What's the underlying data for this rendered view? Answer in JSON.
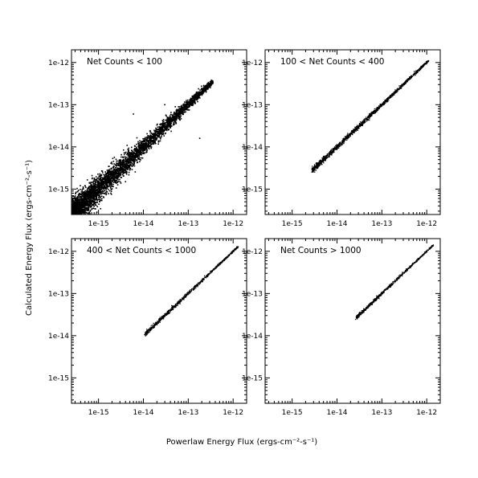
{
  "figure": {
    "xlabel": "Powerlaw Energy Flux (ergs-cm⁻²-s⁻¹)",
    "ylabel": "Calculated Energy Flux (ergs-cm⁻²-s⁻¹)"
  },
  "chart_data": [
    {
      "type": "scatter",
      "title": "Net Counts < 100",
      "xlabel": "",
      "ylabel": "",
      "xscale": "log",
      "yscale": "log",
      "xlim": [
        2.5e-16,
        2e-12
      ],
      "ylim": [
        2.5e-16,
        2e-12
      ],
      "xticks": [
        1e-15,
        1e-14,
        1e-13,
        1e-12
      ],
      "xticklabels": [
        "1e-15",
        "1e-14",
        "1e-13",
        "1e-12"
      ],
      "yticks": [
        1e-15,
        1e-14,
        1e-13,
        1e-12
      ],
      "yticklabels": [
        "1e-15",
        "1e-14",
        "1e-13",
        "1e-12"
      ],
      "grid": false,
      "x_range_points": [
        2.5e-16,
        3.5e-13
      ],
      "relation": "y ≈ x",
      "points_shown": "dense cloud, broad scatter at low flux"
    },
    {
      "type": "scatter",
      "title": "100 < Net Counts < 400",
      "xlabel": "",
      "ylabel": "",
      "xscale": "log",
      "yscale": "log",
      "xlim": [
        2.5e-16,
        2e-12
      ],
      "ylim": [
        2.5e-16,
        2e-12
      ],
      "xticks": [
        1e-15,
        1e-14,
        1e-13,
        1e-12
      ],
      "xticklabels": [
        "1e-15",
        "1e-14",
        "1e-13",
        "1e-12"
      ],
      "yticks": [
        1e-15,
        1e-14,
        1e-13,
        1e-12
      ],
      "yticklabels": [
        "1e-15",
        "1e-14",
        "1e-13",
        "1e-12"
      ],
      "grid": false,
      "x_range_points": [
        2.8e-15,
        1.1e-12
      ],
      "relation": "y ≈ x"
    },
    {
      "type": "scatter",
      "title": "400 < Net Counts < 1000",
      "xlabel": "",
      "ylabel": "",
      "xscale": "log",
      "yscale": "log",
      "xlim": [
        2.5e-16,
        2e-12
      ],
      "ylim": [
        2.5e-16,
        2e-12
      ],
      "xticks": [
        1e-15,
        1e-14,
        1e-13,
        1e-12
      ],
      "xticklabels": [
        "1e-15",
        "1e-14",
        "1e-13",
        "1e-12"
      ],
      "yticks": [
        1e-15,
        1e-14,
        1e-13,
        1e-12
      ],
      "yticklabels": [
        "1e-15",
        "1e-14",
        "1e-13",
        "1e-12"
      ],
      "grid": false,
      "x_range_points": [
        1.1e-14,
        1.3e-12
      ],
      "relation": "y ≈ x"
    },
    {
      "type": "scatter",
      "title": "Net Counts > 1000",
      "xlabel": "",
      "ylabel": "",
      "xscale": "log",
      "yscale": "log",
      "xlim": [
        2.5e-16,
        2e-12
      ],
      "ylim": [
        2.5e-16,
        2e-12
      ],
      "xticks": [
        1e-15,
        1e-14,
        1e-13,
        1e-12
      ],
      "xticklabels": [
        "1e-15",
        "1e-14",
        "1e-13",
        "1e-12"
      ],
      "yticks": [
        1e-15,
        1e-14,
        1e-13,
        1e-12
      ],
      "yticklabels": [
        "1e-15",
        "1e-14",
        "1e-13",
        "1e-12"
      ],
      "grid": false,
      "x_range_points": [
        2.7e-14,
        1.4e-12
      ],
      "relation": "y ≈ x"
    }
  ]
}
